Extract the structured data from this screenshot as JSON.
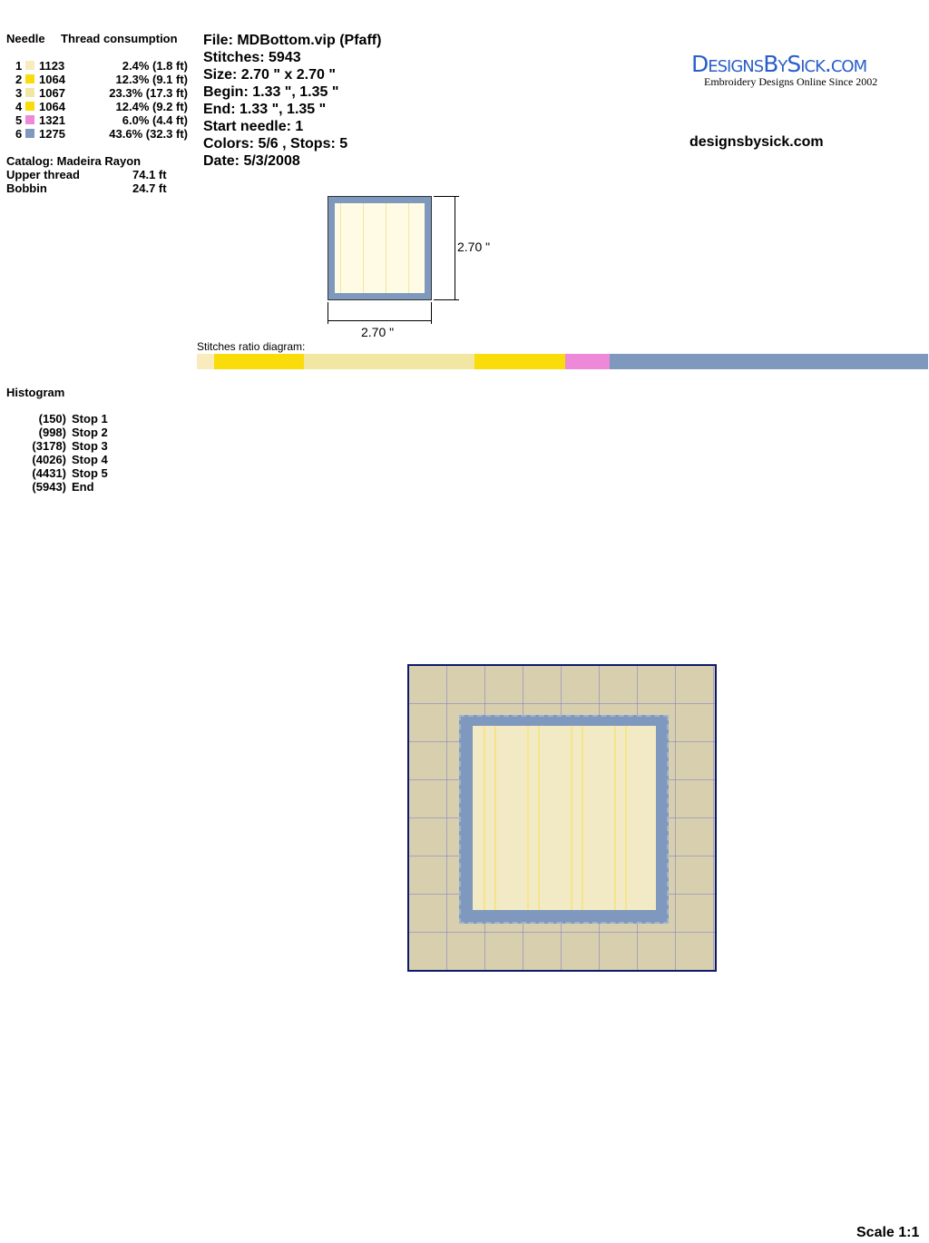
{
  "thread_table": {
    "header_needle": "Needle",
    "header_consumption": "Thread consumption",
    "rows": [
      {
        "needle": "1",
        "color": "#f9ebbb",
        "code": "1123",
        "consumption": "2.4% (1.8 ft)",
        "percent": 2.4
      },
      {
        "needle": "2",
        "color": "#f9dc0a",
        "code": "1064",
        "consumption": "12.3% (9.1 ft)",
        "percent": 12.3
      },
      {
        "needle": "3",
        "color": "#f2e6a3",
        "code": "1067",
        "consumption": "23.3% (17.3 ft)",
        "percent": 23.3
      },
      {
        "needle": "4",
        "color": "#f9dc0a",
        "code": "1064",
        "consumption": "12.4% (9.2 ft)",
        "percent": 12.4
      },
      {
        "needle": "5",
        "color": "#ee88d8",
        "code": "1321",
        "consumption": "6.0% (4.4 ft)",
        "percent": 6.0
      },
      {
        "needle": "6",
        "color": "#7f98bd",
        "code": "1275",
        "consumption": "43.6% (32.3 ft)",
        "percent": 43.6
      }
    ],
    "catalog": "Catalog: Madeira Rayon",
    "upper_label": "Upper thread",
    "upper_value": "74.1 ft",
    "bobbin_label": "Bobbin",
    "bobbin_value": "24.7 ft"
  },
  "info": [
    "File: MDBottom.vip  (Pfaff)",
    "Stitches: 5943",
    "Size: 2.70 \" x 2.70 \"",
    "Begin: 1.33 \", 1.35 \"",
    "End: 1.33 \", 1.35 \"",
    "Start needle: 1",
    "Colors: 5/6 , Stops: 5",
    "Date: 5/3/2008"
  ],
  "logo": {
    "title": "DesignsBySick.com",
    "tagline": "Embroidery Designs Online Since 2002"
  },
  "website": "designsbysick.com",
  "thumb": {
    "height_label": "2.70 \"",
    "width_label": "2.70 \""
  },
  "ratio_label": "Stitches ratio diagram:",
  "histogram": {
    "title": "Histogram",
    "items": [
      {
        "count": "(150)",
        "label": "Stop 1"
      },
      {
        "count": "(998)",
        "label": "Stop 2"
      },
      {
        "count": "(3178)",
        "label": "Stop 3"
      },
      {
        "count": "(4026)",
        "label": "Stop 4"
      },
      {
        "count": "(4431)",
        "label": "Stop 5"
      },
      {
        "count": "(5943)",
        "label": "End"
      }
    ]
  },
  "scale": "Scale 1:1"
}
